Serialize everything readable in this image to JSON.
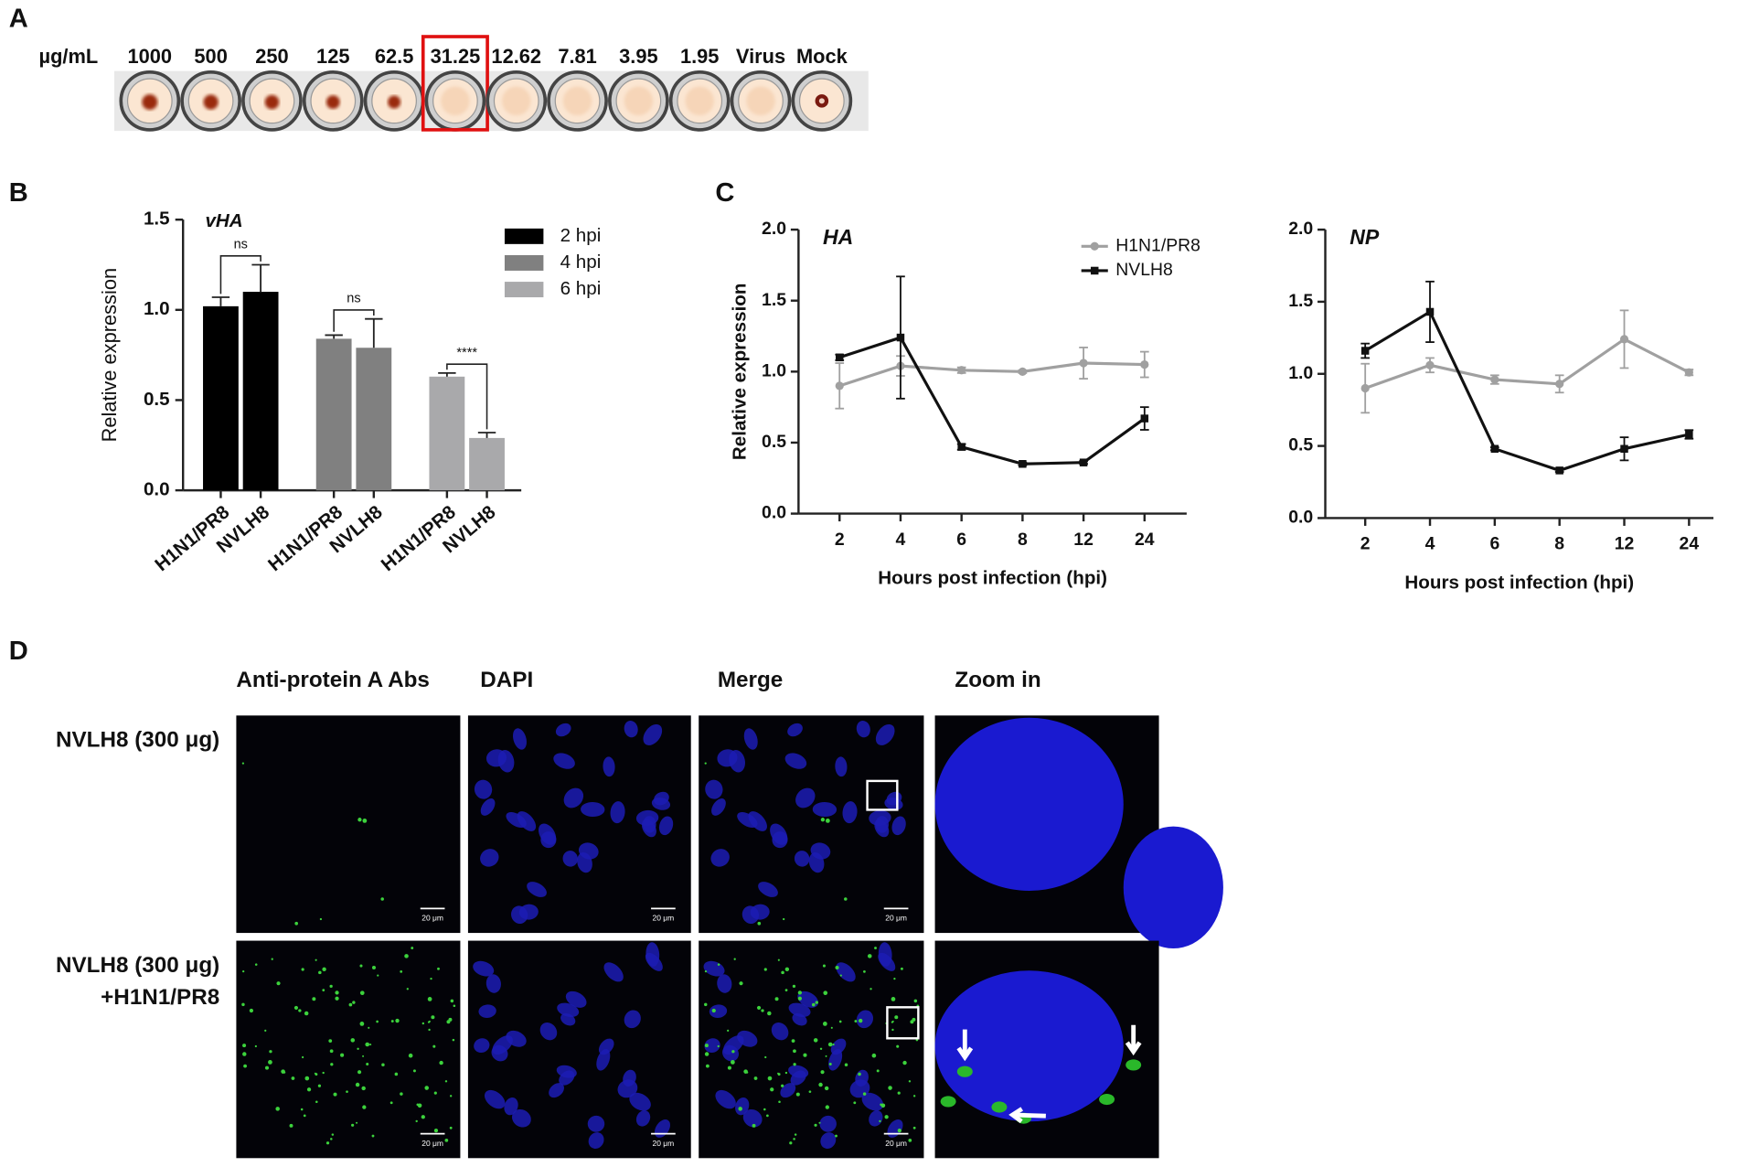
{
  "panel_labels": [
    "A",
    "B",
    "C",
    "D"
  ],
  "hemagglutination": {
    "unit": "µg/mL",
    "wells": [
      "1000",
      "500",
      "250",
      "125",
      "62.5",
      "31.25",
      "12.62",
      "7.81",
      "3.95",
      "1.95",
      "Virus",
      "Mock"
    ],
    "highlight": "31.25"
  },
  "chart_data": [
    {
      "type": "bar",
      "title": "vHA",
      "y_label": "Relative expression",
      "categories": [
        "2 hpi",
        "4 hpi",
        "6 hpi"
      ],
      "colors": [
        "#000000",
        "#808080",
        "#a9a9ab"
      ],
      "series": [
        {
          "name": "H1N1/PR8",
          "values": [
            1.02,
            0.84,
            0.63
          ],
          "errors": [
            0.05,
            0.02,
            0.02
          ]
        },
        {
          "name": "NVLH8",
          "values": [
            1.1,
            0.79,
            0.29
          ],
          "errors": [
            0.15,
            0.16,
            0.03
          ]
        }
      ],
      "significance": [
        "ns",
        "ns",
        "****"
      ],
      "ylim": [
        0,
        1.5
      ],
      "yticks": [
        {
          "value": 0,
          "label": "0.0"
        },
        0.5,
        {
          "value": 1,
          "label": "1.0"
        },
        1.5
      ]
    },
    {
      "type": "line",
      "title": "HA",
      "y_label": "Relative expression",
      "x_label": "Hours post infection (hpi)",
      "categories": [
        "2",
        "4",
        "6",
        "8",
        "12",
        "24"
      ],
      "series": [
        {
          "name": "H1N1/PR8",
          "color": "#a0a0a0",
          "marker": "circle",
          "values": [
            0.9,
            1.04,
            1.01,
            1.0,
            1.06,
            1.05
          ],
          "errors": [
            0.16,
            0.07,
            0.02,
            0.01,
            0.11,
            0.09
          ]
        },
        {
          "name": "NVLH8",
          "color": "#111111",
          "marker": "square",
          "values": [
            1.1,
            1.24,
            0.47,
            0.35,
            0.36,
            0.67
          ],
          "errors": [
            0.02,
            0.43,
            0.02,
            0.01,
            0.01,
            0.08
          ]
        }
      ],
      "legend": true,
      "ylim": [
        0,
        2
      ],
      "yticks": [
        {
          "value": 0,
          "label": "0.0"
        },
        0.5,
        {
          "value": 1,
          "label": "1.0"
        },
        1.5,
        {
          "value": 2,
          "label": "2.0"
        }
      ]
    },
    {
      "type": "line",
      "title": "NP",
      "x_label": "Hours post infection (hpi)",
      "categories": [
        "2",
        "4",
        "6",
        "8",
        "12",
        "24"
      ],
      "series": [
        {
          "name": "H1N1/PR8",
          "color": "#a0a0a0",
          "marker": "circle",
          "values": [
            0.9,
            1.06,
            0.96,
            0.93,
            1.24,
            1.01
          ],
          "errors": [
            0.17,
            0.05,
            0.03,
            0.06,
            0.2,
            0.02
          ]
        },
        {
          "name": "NVLH8",
          "color": "#111111",
          "marker": "square",
          "values": [
            1.16,
            1.43,
            0.48,
            0.33,
            0.48,
            0.58
          ],
          "errors": [
            0.05,
            0.21,
            0.01,
            0.01,
            0.08,
            0.03
          ]
        }
      ],
      "legend": false,
      "ylim": [
        0,
        2
      ],
      "yticks": [
        {
          "value": 0,
          "label": "0.0"
        },
        0.5,
        {
          "value": 1,
          "label": "1.0"
        },
        1.5,
        {
          "value": 2,
          "label": "2.0"
        }
      ]
    }
  ],
  "microscopy": {
    "columns": [
      "Anti-protein A Abs",
      "DAPI",
      "Merge",
      "Zoom in"
    ],
    "rows": [
      [
        "NVLH8 (300 μg)"
      ],
      [
        "NVLH8 (300 μg)",
        "+H1N1/PR8"
      ]
    ],
    "scale_bar": "20 μm"
  }
}
